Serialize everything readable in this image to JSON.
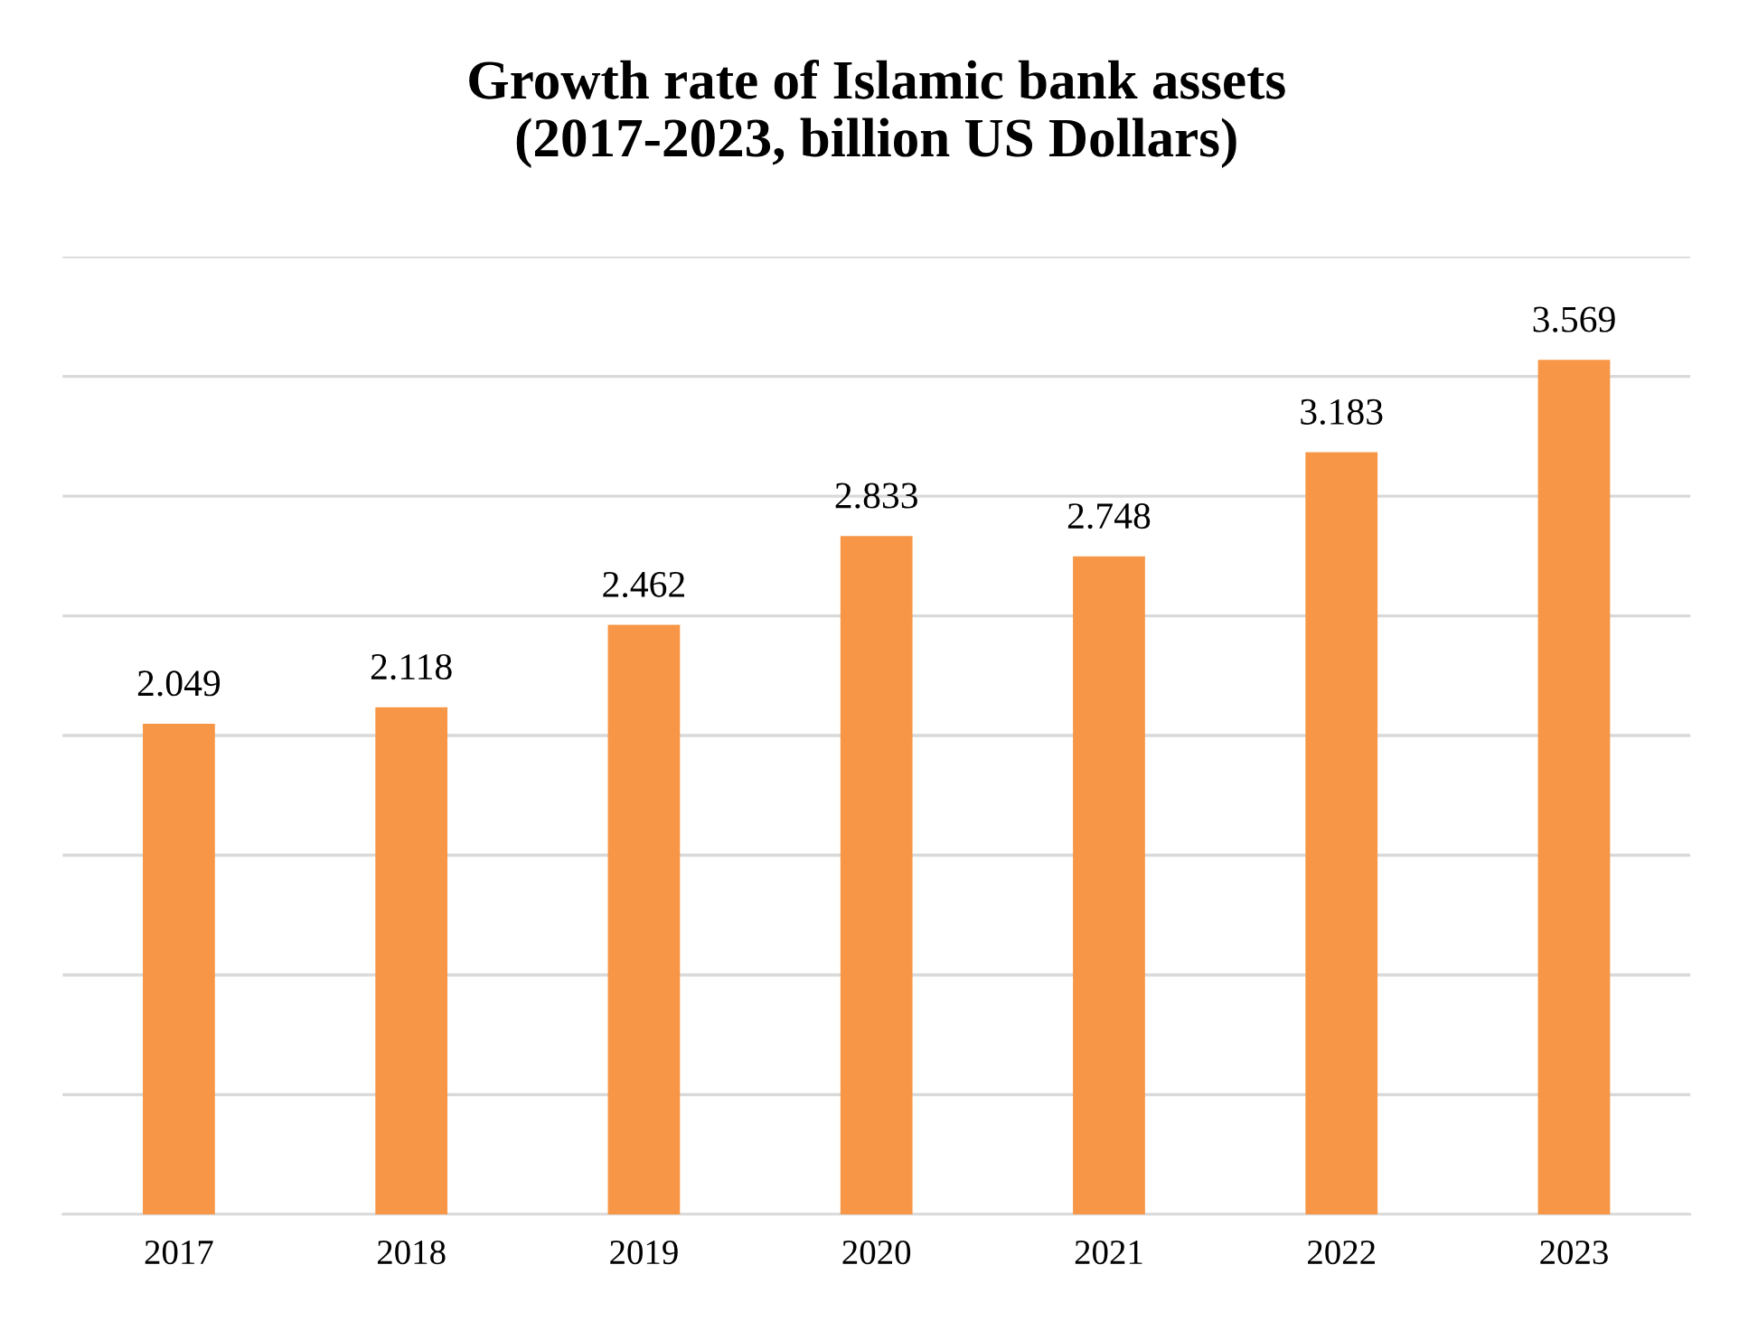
{
  "chart_data": {
    "type": "bar",
    "title": "Growth rate of Islamic bank assets\n(2017-2023, billion US Dollars)",
    "categories": [
      "2017",
      "2018",
      "2019",
      "2020",
      "2021",
      "2022",
      "2023"
    ],
    "values": [
      2.049,
      2.118,
      2.462,
      2.833,
      2.748,
      3.183,
      3.569
    ],
    "color": "#f79646",
    "ylim": [
      0,
      4
    ],
    "yticks": [
      {
        "value": 0,
        "label": null
      },
      {
        "value": 0.5,
        "label": null
      },
      {
        "value": 1,
        "label": null
      },
      {
        "value": 1.5,
        "label": null
      },
      {
        "value": 2,
        "label": null
      },
      {
        "value": 2.5,
        "label": null
      },
      {
        "value": 3,
        "label": null
      },
      {
        "value": 3.5,
        "label": null
      },
      {
        "value": 4,
        "label": null
      }
    ],
    "grid": "y",
    "tick_labels": "x",
    "data_labels": true
  }
}
